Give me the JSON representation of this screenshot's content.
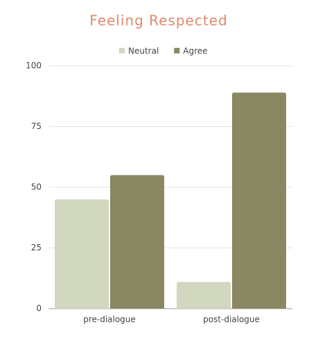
{
  "chart_data": {
    "type": "bar",
    "title": "Feeling Respected",
    "categories": [
      "pre-dialogue",
      "post-dialogue"
    ],
    "series": [
      {
        "name": "Neutral",
        "color": "#d2d7c0",
        "values": [
          45,
          11
        ]
      },
      {
        "name": "Agree",
        "color": "#8a8763",
        "values": [
          55,
          89
        ]
      }
    ],
    "ylim": [
      0,
      100
    ],
    "yticks": [
      0,
      25,
      50,
      75,
      100
    ],
    "grid": true,
    "legend": "top"
  }
}
